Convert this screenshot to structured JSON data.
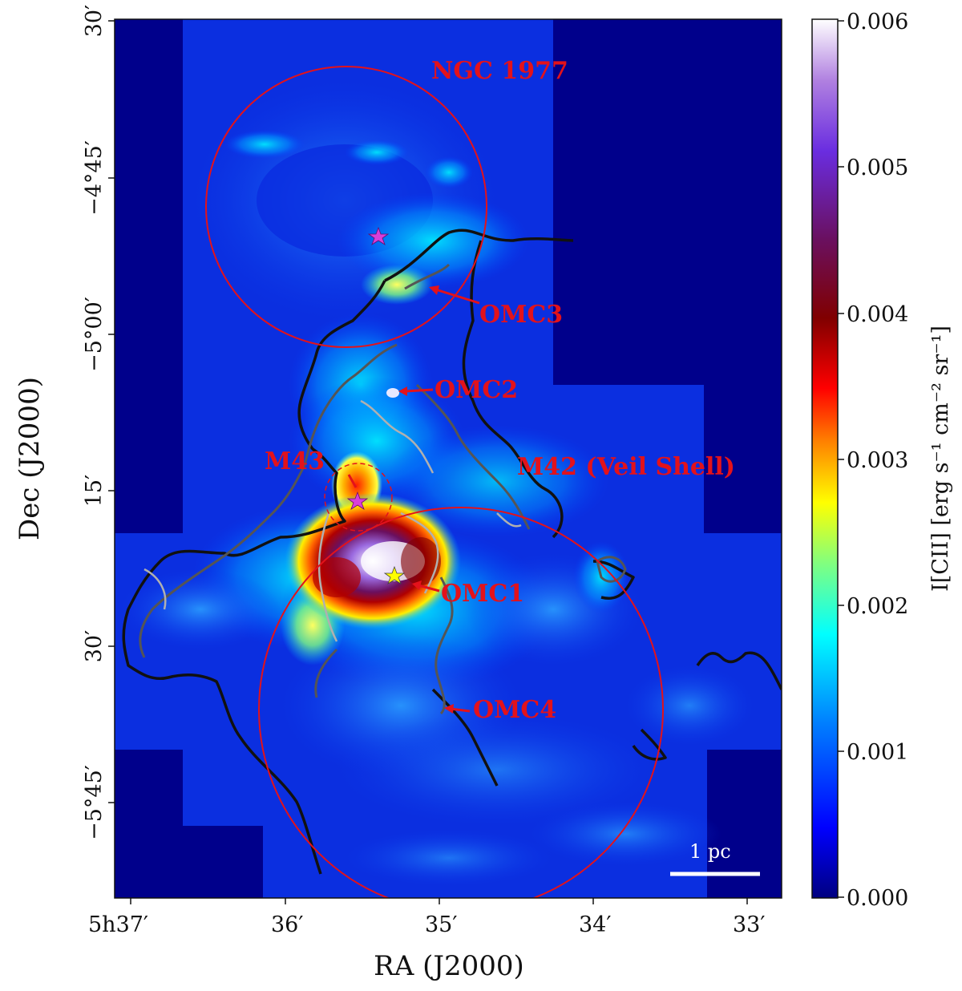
{
  "figure": {
    "x_axis_title": "RA (J2000)",
    "y_axis_title": "Dec (J2000)",
    "x_ticks": [
      "5h37′",
      "36′",
      "35′",
      "34′",
      "33′"
    ],
    "y_ticks": [
      "30′",
      "−4°45′",
      "−5°00′",
      "15′",
      "30′",
      "−5°45′"
    ],
    "colorbar": {
      "label": "I[CII] [erg s⁻¹ cm⁻² sr⁻¹]",
      "ticks": [
        "0.006",
        "0.005",
        "0.004",
        "0.003",
        "0.002",
        "0.001",
        "0.000"
      ],
      "range": [
        0.0,
        0.006
      ],
      "colors": [
        "#000080",
        "#0000ff",
        "#00ffff",
        "#ffff00",
        "#ff0000",
        "#800000",
        "#6a0dad",
        "#ffffff"
      ]
    },
    "region_labels": {
      "ngc1977": "NGC 1977",
      "omc3": "OMC3",
      "omc2": "OMC2",
      "m43": "M43",
      "m42": "M42 (Veil Shell)",
      "omc1": "OMC1",
      "omc4": "OMC4"
    },
    "scalebar_label": "1 pc",
    "colors": {
      "circle": "#e3121b",
      "label": "#e3121b",
      "background": "#00008b",
      "contour_dark": "#111111",
      "contour_mid": "#555555",
      "contour_light": "#aaaaaa"
    }
  }
}
